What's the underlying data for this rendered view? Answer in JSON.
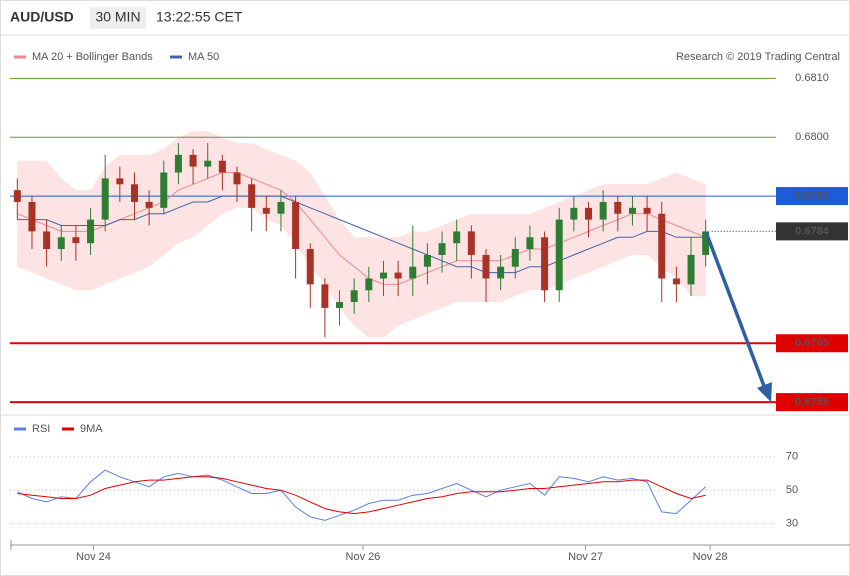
{
  "header": {
    "symbol": "AUD/USD",
    "interval": "30 MIN",
    "time": "13:22:55 CET"
  },
  "chart_data": [
    {
      "type": "candlestick",
      "source": "Research © 2019 Trading Central",
      "xlim": [
        -0.5,
        47.5
      ],
      "ylim": [
        0.6754,
        0.6816
      ],
      "up_color": "#2f7d32",
      "down_color": "#a93226",
      "open": [
        0.6791,
        0.6789,
        0.6784,
        0.6781,
        0.6783,
        0.6782,
        0.6786,
        0.6793,
        0.6792,
        0.6789,
        0.6788,
        0.6794,
        0.6797,
        0.6795,
        0.6796,
        0.6794,
        0.6792,
        0.6788,
        0.6787,
        0.6789,
        0.6781,
        0.6775,
        0.6771,
        0.6772,
        0.6774,
        0.6776,
        0.6777,
        0.6776,
        0.6778,
        0.678,
        0.6782,
        0.6784,
        0.678,
        0.6776,
        0.6778,
        0.6781,
        0.6783,
        0.6774,
        0.6786,
        0.6788,
        0.6786,
        0.6789,
        0.6787,
        0.6788,
        0.6787,
        0.6776,
        0.6775,
        0.678
      ],
      "high": [
        0.6793,
        0.679,
        0.6786,
        0.6785,
        0.6785,
        0.6788,
        0.6797,
        0.6795,
        0.6794,
        0.6791,
        0.6796,
        0.6799,
        0.6798,
        0.6799,
        0.6797,
        0.6795,
        0.6793,
        0.679,
        0.6791,
        0.679,
        0.6782,
        0.6776,
        0.6774,
        0.6776,
        0.6778,
        0.6779,
        0.6779,
        0.6785,
        0.6782,
        0.6784,
        0.6786,
        0.6785,
        0.6781,
        0.678,
        0.6783,
        0.6785,
        0.6784,
        0.6788,
        0.679,
        0.6789,
        0.6791,
        0.679,
        0.679,
        0.679,
        0.6789,
        0.6778,
        0.6783,
        0.6786
      ],
      "low": [
        0.6786,
        0.6781,
        0.6778,
        0.6779,
        0.6779,
        0.678,
        0.6784,
        0.6789,
        0.6786,
        0.6785,
        0.6787,
        0.6792,
        0.6792,
        0.6793,
        0.6791,
        0.6789,
        0.6784,
        0.6784,
        0.6784,
        0.6776,
        0.6771,
        0.6766,
        0.6768,
        0.677,
        0.6772,
        0.6773,
        0.6773,
        0.6773,
        0.6775,
        0.6777,
        0.6779,
        0.6776,
        0.6772,
        0.6774,
        0.6776,
        0.6779,
        0.6772,
        0.6772,
        0.6784,
        0.6783,
        0.6784,
        0.6784,
        0.6785,
        0.6784,
        0.6772,
        0.6772,
        0.6773,
        0.6778
      ],
      "close": [
        0.6789,
        0.6784,
        0.6781,
        0.6783,
        0.6782,
        0.6786,
        0.6793,
        0.6792,
        0.6789,
        0.6788,
        0.6794,
        0.6797,
        0.6795,
        0.6796,
        0.6794,
        0.6792,
        0.6788,
        0.6787,
        0.6789,
        0.6781,
        0.6775,
        0.6771,
        0.6772,
        0.6774,
        0.6776,
        0.6777,
        0.6776,
        0.6778,
        0.678,
        0.6782,
        0.6784,
        0.678,
        0.6776,
        0.6778,
        0.6781,
        0.6783,
        0.6774,
        0.6786,
        0.6788,
        0.6786,
        0.6789,
        0.6787,
        0.6788,
        0.6787,
        0.6776,
        0.6775,
        0.678,
        0.6784
      ],
      "series": [
        {
          "name": "MA 20 + Bollinger Bands",
          "color": "#f08a8a",
          "band_color": "#fde3e3",
          "values": [
            0.6787,
            0.6786,
            0.6785,
            0.6784,
            0.6784,
            0.6784,
            0.6785,
            0.6786,
            0.6787,
            0.6788,
            0.6789,
            0.6791,
            0.6792,
            0.6793,
            0.6794,
            0.6794,
            0.6793,
            0.6792,
            0.6791,
            0.6789,
            0.6786,
            0.6783,
            0.678,
            0.6778,
            0.6776,
            0.6775,
            0.6775,
            0.6776,
            0.6777,
            0.6778,
            0.6779,
            0.6779,
            0.6779,
            0.6779,
            0.678,
            0.6781,
            0.6781,
            0.6782,
            0.6783,
            0.6784,
            0.6785,
            0.6786,
            0.6787,
            0.6787,
            0.6786,
            0.6785,
            0.6784,
            0.6783
          ],
          "upper": [
            0.6796,
            0.6796,
            0.6796,
            0.6793,
            0.6791,
            0.6791,
            0.6795,
            0.6797,
            0.6797,
            0.6797,
            0.6798,
            0.68,
            0.6801,
            0.6801,
            0.68,
            0.6799,
            0.6799,
            0.6798,
            0.6797,
            0.6796,
            0.6794,
            0.679,
            0.6786,
            0.6783,
            0.6783,
            0.6783,
            0.6783,
            0.6784,
            0.6784,
            0.6785,
            0.6786,
            0.6787,
            0.6787,
            0.6787,
            0.6787,
            0.6787,
            0.6788,
            0.6789,
            0.679,
            0.6791,
            0.6792,
            0.6792,
            0.6792,
            0.6792,
            0.6793,
            0.6794,
            0.6793,
            0.6792
          ],
          "lower": [
            0.6778,
            0.6777,
            0.6776,
            0.6775,
            0.6774,
            0.6774,
            0.6775,
            0.6776,
            0.6777,
            0.6778,
            0.678,
            0.6782,
            0.6783,
            0.6785,
            0.6787,
            0.6788,
            0.6788,
            0.6786,
            0.6785,
            0.6782,
            0.6778,
            0.6775,
            0.6771,
            0.6768,
            0.6766,
            0.6766,
            0.6768,
            0.6769,
            0.677,
            0.6771,
            0.6772,
            0.6772,
            0.6772,
            0.6772,
            0.6773,
            0.6774,
            0.6774,
            0.6775,
            0.6776,
            0.6777,
            0.6778,
            0.6779,
            0.678,
            0.678,
            0.6778,
            0.6776,
            0.6773,
            0.6773
          ]
        },
        {
          "name": "MA 50",
          "color": "#3f64a8",
          "values": [
            0.6786,
            0.6786,
            0.6786,
            0.6785,
            0.6785,
            0.6785,
            0.6785,
            0.6786,
            0.6786,
            0.6787,
            0.6787,
            0.6788,
            0.6789,
            0.6789,
            0.679,
            0.679,
            0.679,
            0.679,
            0.679,
            0.6789,
            0.6788,
            0.6787,
            0.6786,
            0.6785,
            0.6784,
            0.6783,
            0.6782,
            0.6781,
            0.678,
            0.6779,
            0.6778,
            0.6778,
            0.6777,
            0.6777,
            0.6777,
            0.6778,
            0.6778,
            0.6779,
            0.678,
            0.6781,
            0.6782,
            0.6783,
            0.6783,
            0.6784,
            0.6784,
            0.6783,
            0.6783,
            0.6783
          ]
        }
      ],
      "levels": [
        {
          "value": 0.681,
          "label": "0.6810",
          "color": "#5aa02c",
          "style": "line"
        },
        {
          "value": 0.68,
          "label": "0.6800",
          "color": "#5aa02c",
          "style": "line"
        },
        {
          "value": 0.679,
          "label": "0.6790",
          "color": "#1e5bd6",
          "style": "box"
        },
        {
          "value": 0.6784,
          "label": "0.6784",
          "color": "#333333",
          "style": "dotted"
        },
        {
          "value": 0.6765,
          "label": "0.6765",
          "color": "#e00000",
          "style": "box"
        },
        {
          "value": 0.6755,
          "label": "0.6755",
          "color": "#e00000",
          "style": "box"
        }
      ]
    },
    {
      "type": "line",
      "xlim": [
        -0.5,
        47.5
      ],
      "ylim": [
        22,
        74
      ],
      "yticks": [
        30,
        50,
        70
      ],
      "grid": true,
      "xticks": [
        {
          "value": 5.2,
          "label": "Nov 24"
        },
        {
          "value": 23.6,
          "label": "Nov 26"
        },
        {
          "value": 38.8,
          "label": "Nov 27"
        },
        {
          "value": 47.3,
          "label": "Nov 28"
        }
      ],
      "series": [
        {
          "name": "RSI",
          "color": "#5b7fe0",
          "values": [
            49,
            45,
            43,
            46,
            45,
            55,
            62,
            58,
            55,
            52,
            58,
            60,
            58,
            59,
            56,
            52,
            48,
            48,
            50,
            40,
            34,
            32,
            35,
            38,
            42,
            44,
            44,
            47,
            48,
            51,
            54,
            50,
            46,
            50,
            52,
            54,
            47,
            58,
            57,
            55,
            58,
            56,
            57,
            55,
            37,
            36,
            44,
            52
          ]
        },
        {
          "name": "9MA",
          "color": "#e00000",
          "values": [
            48,
            47,
            46,
            45,
            45,
            47,
            51,
            53,
            55,
            56,
            56,
            57,
            58,
            58,
            57,
            55,
            53,
            51,
            50,
            47,
            43,
            39,
            37,
            36,
            37,
            39,
            41,
            43,
            45,
            46,
            48,
            49,
            49,
            49,
            50,
            51,
            51,
            52,
            53,
            54,
            55,
            55,
            56,
            56,
            52,
            48,
            45,
            47
          ]
        }
      ]
    }
  ]
}
